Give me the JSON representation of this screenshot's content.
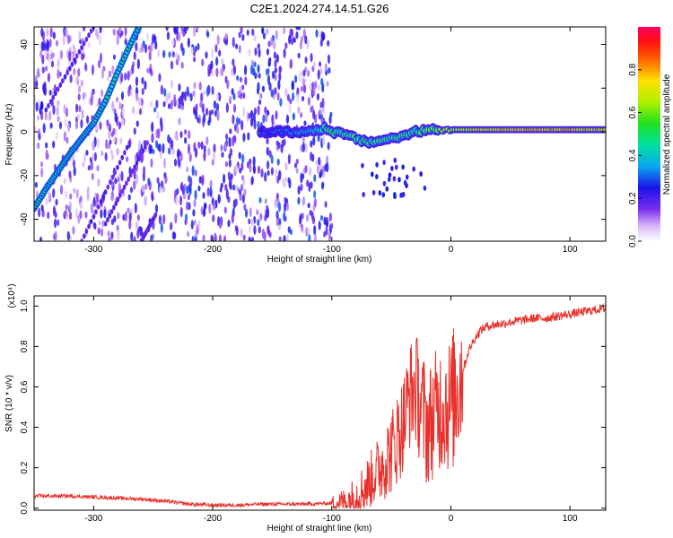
{
  "title": "C2E1.2024.274.14.51.G26",
  "chart_data": [
    {
      "type": "heatmap",
      "xlabel": "Height of straight line (km)",
      "ylabel": "Frequency (Hz)",
      "xlim": [
        -350,
        130
      ],
      "ylim": [
        -50,
        48
      ],
      "xticks": [
        -300,
        -200,
        -100,
        0,
        100
      ],
      "xtick_labels": [
        "-300",
        "-200",
        "-100",
        "0",
        "100"
      ],
      "yticks": [
        -40,
        -20,
        0,
        20,
        40
      ],
      "ytick_labels": [
        "-40",
        "-20",
        "0",
        "20",
        "40"
      ],
      "colorbar": {
        "label": "Normalized spectral amplitude",
        "range": [
          0,
          1
        ],
        "ticks": [
          0.0,
          0.2,
          0.4,
          0.6,
          0.8
        ],
        "tick_labels": [
          "0.0",
          "0.2",
          "0.4",
          "0.6",
          "0.8"
        ]
      },
      "features": {
        "carrier_line": {
          "x": [
            -350,
            -340,
            -320,
            -300,
            -290,
            -280,
            -270,
            -262
          ],
          "y": [
            -35,
            -26,
            -10,
            4,
            14,
            27,
            39,
            48
          ],
          "amplitude": 0.45
        },
        "faint_slanted_lines": [
          {
            "x": [
              -340,
              -300
            ],
            "y": [
              10,
              48
            ]
          },
          {
            "x": [
              -310,
              -270
            ],
            "y": [
              -50,
              -5
            ]
          },
          {
            "x": [
              -290,
              -255
            ],
            "y": [
              -42,
              -5
            ]
          },
          {
            "x": [
              -260,
              -248
            ],
            "y": [
              -50,
              -38
            ]
          }
        ],
        "signal_ridge": {
          "x": [
            -160,
            -140,
            -120,
            -105,
            -100,
            -90,
            -80,
            -70,
            -60,
            -50,
            -40,
            -30,
            -20,
            -10,
            0,
            20,
            40,
            60,
            80,
            100,
            130
          ],
          "y": [
            0,
            0,
            0,
            2,
            0,
            -1,
            -3,
            -5,
            -4,
            -3,
            -2,
            0,
            1,
            1,
            1,
            1,
            1,
            1,
            1,
            1,
            1
          ],
          "amplitude": [
            0.3,
            0.35,
            0.4,
            0.5,
            0.55,
            0.5,
            0.55,
            0.5,
            0.55,
            0.5,
            0.55,
            0.5,
            0.6,
            0.65,
            0.7,
            0.75,
            0.78,
            0.8,
            0.8,
            0.8,
            0.75
          ]
        },
        "noise_region": {
          "x": [
            -350,
            -100
          ],
          "y": [
            -50,
            48
          ]
        }
      }
    },
    {
      "type": "line",
      "xlabel": "Height of straight line (km)",
      "ylabel": "SNR (10 * v/v)",
      "yscale_label": "(x10⁴)",
      "xlim": [
        -350,
        130
      ],
      "ylim": [
        -0.01,
        1.05
      ],
      "xticks": [
        -300,
        -200,
        -100,
        0,
        100
      ],
      "xtick_labels": [
        "-300",
        "-200",
        "-100",
        "0",
        "100"
      ],
      "yticks": [
        0.0,
        0.2,
        0.4,
        0.6,
        0.8,
        1.0
      ],
      "ytick_labels": [
        "0.0",
        "0.2",
        "0.4",
        "0.6",
        "0.8",
        "1.0"
      ],
      "color": "#e8312b",
      "series": [
        {
          "x": [
            -350,
            -320,
            -300,
            -280,
            -260,
            -240,
            -220,
            -200,
            -180,
            -160,
            -140,
            -120,
            -100,
            -90,
            -80,
            -70,
            -60,
            -50,
            -45,
            -40,
            -35,
            -30,
            -25,
            -20,
            -15,
            -10,
            -5,
            0,
            5,
            10,
            15,
            20,
            25,
            30,
            40,
            50,
            60,
            70,
            80,
            90,
            100,
            110,
            120,
            130
          ],
          "y": [
            0.06,
            0.06,
            0.055,
            0.05,
            0.045,
            0.035,
            0.02,
            0.015,
            0.015,
            0.02,
            0.02,
            0.02,
            0.025,
            0.03,
            0.06,
            0.12,
            0.2,
            0.28,
            0.35,
            0.42,
            0.55,
            0.6,
            0.5,
            0.4,
            0.45,
            0.5,
            0.52,
            0.5,
            0.6,
            0.68,
            0.78,
            0.84,
            0.88,
            0.9,
            0.91,
            0.92,
            0.93,
            0.94,
            0.94,
            0.95,
            0.96,
            0.97,
            0.98,
            0.99
          ]
        }
      ]
    }
  ]
}
